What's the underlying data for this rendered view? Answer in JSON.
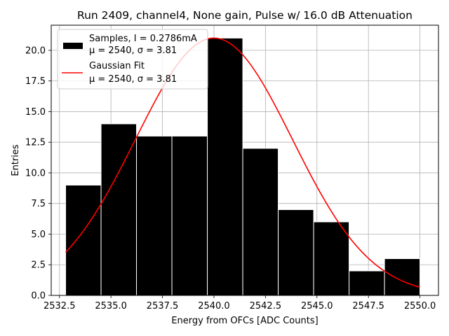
{
  "chart_data": {
    "type": "bar",
    "title": "Run 2409, channel4, None gain, Pulse w/ 16.0 dB Attenuation",
    "xlabel": "Energy from OFCs [ADC Counts]",
    "ylabel": "Entries",
    "xlim": [
      2532.1,
      2550.9
    ],
    "ylim": [
      0,
      22.05
    ],
    "xticks": [
      2532.5,
      2535.0,
      2537.5,
      2540.0,
      2542.5,
      2545.0,
      2547.5,
      2550.0
    ],
    "xtick_labels": [
      "2532.5",
      "2535.0",
      "2537.5",
      "2540.0",
      "2542.5",
      "2545.0",
      "2547.5",
      "2550.0"
    ],
    "yticks": [
      0,
      2.5,
      5,
      7.5,
      10,
      12.5,
      15,
      17.5,
      20
    ],
    "ytick_labels": [
      "0.0",
      "2.5",
      "5.0",
      "7.5",
      "10.0",
      "12.5",
      "15.0",
      "17.5",
      "20.0"
    ],
    "grid": true,
    "legend_position": "top-left",
    "series": [
      {
        "name": "Samples, I = 0.2786mA",
        "name_line2": "μ = 2540, σ = 3.81",
        "kind": "histogram",
        "color": "#000000",
        "bin_edges": [
          2532.8,
          2534.52,
          2536.24,
          2537.96,
          2539.68,
          2541.4,
          2543.12,
          2544.84,
          2546.56,
          2548.28,
          2550.0
        ],
        "values": [
          9,
          14,
          13,
          13,
          21,
          12,
          7,
          6,
          2,
          3
        ]
      },
      {
        "name": "Gaussian Fit",
        "name_line2": "μ = 2540, σ = 3.81",
        "kind": "line",
        "color": "#ff0000",
        "mu": 2540.0,
        "sigma": 3.81,
        "amplitude": 21.0,
        "x_range": [
          2532.8,
          2550.0
        ]
      }
    ]
  }
}
